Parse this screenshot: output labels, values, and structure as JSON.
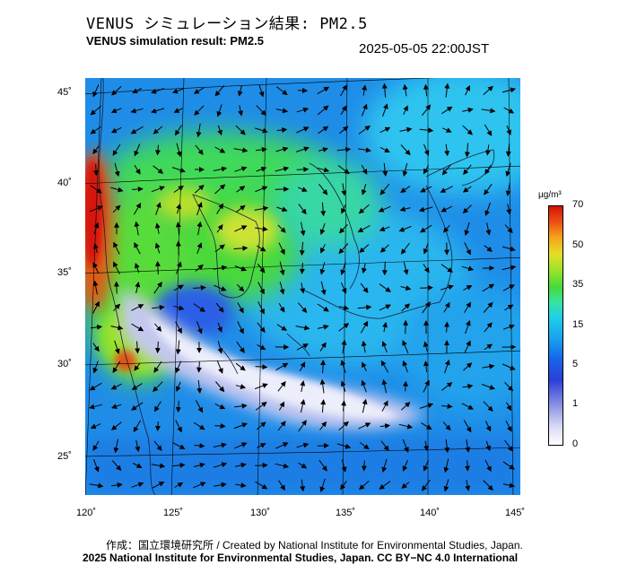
{
  "header": {
    "title_jp": "VENUS シミュレーション結果: PM2.5",
    "title_en": "VENUS simulation result: PM2.5",
    "datetime": "2025-05-05 22:00JST"
  },
  "map": {
    "lon_labels": [
      "120˚",
      "125˚",
      "130˚",
      "135˚",
      "140˚",
      "145˚"
    ],
    "lat_labels": [
      "45˚",
      "40˚",
      "35˚",
      "30˚",
      "25˚"
    ],
    "lon_range": [
      120,
      145
    ],
    "lat_range": [
      23,
      46
    ]
  },
  "colorbar": {
    "unit": "µg/m³",
    "ticks": [
      "70",
      "50",
      "35",
      "15",
      "5",
      "1",
      "0"
    ],
    "colors": [
      "#ffffff",
      "#8f97e4",
      "#1666e8",
      "#20d2e4",
      "#45d93a",
      "#e5de28",
      "#ee5514",
      "#d61208"
    ]
  },
  "footer": {
    "credit": "作成：国立環境研究所 / Created by National Institute for Environmental Studies, Japan.",
    "copyright": "2025 National Institute for Environmental Studies, Japan. CC BY−NC 4.0 International"
  }
}
